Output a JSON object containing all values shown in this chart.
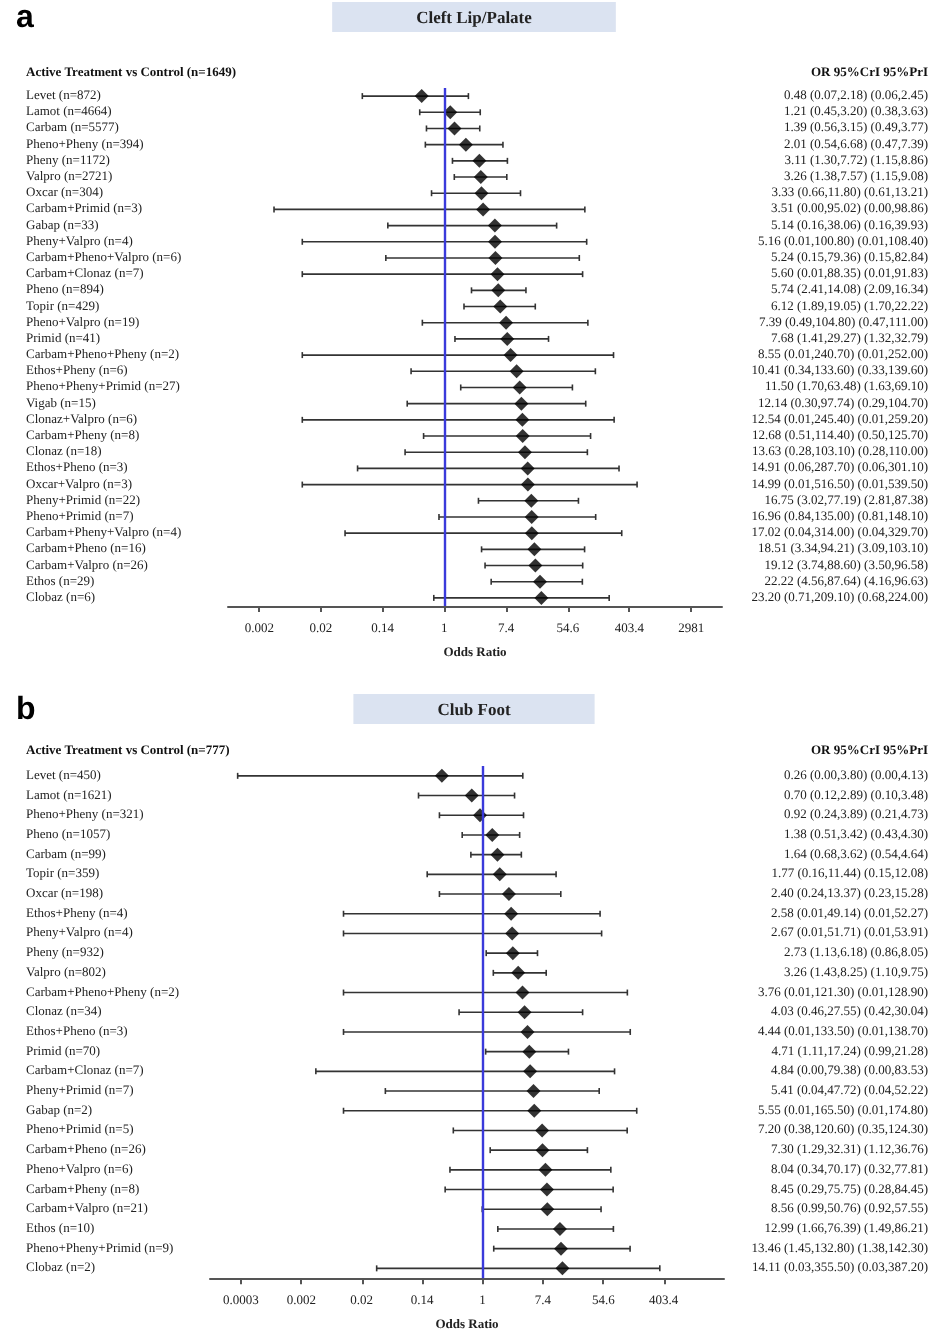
{
  "chart_data": [
    {
      "type": "scatter",
      "orientation": "horizontal",
      "title": "Cleft Lip/Palate",
      "annotations": [
        "a"
      ],
      "ylabel": "Active Treatment vs Control (n=1649)",
      "y2label": "OR 95%CrI 95%PrI",
      "xlabel": "Odds Ratio",
      "log": "x",
      "marker": "diamond",
      "grid": false,
      "color": "#000000",
      "categories": [
        "Levet (n=872)",
        "Lamot (n=4664)",
        "Carbam (n=5577)",
        "Pheno+Pheny (n=394)",
        "Pheny (n=1172)",
        "Valpro (n=2721)",
        "Oxcar (n=304)",
        "Carbam+Primid (n=3)",
        "Gabap (n=33)",
        "Pheny+Valpro (n=4)",
        "Carbam+Pheno+Valpro (n=6)",
        "Carbam+Clonaz (n=7)",
        "Pheno (n=894)",
        "Topir (n=429)",
        "Pheno+Valpro (n=19)",
        "Primid (n=41)",
        "Carbam+Pheno+Pheny (n=2)",
        "Ethos+Pheny (n=6)",
        "Pheno+Pheny+Primid (n=27)",
        "Vigab (n=15)",
        "Clonaz+Valpro (n=6)",
        "Carbam+Pheny (n=8)",
        "Clonaz (n=18)",
        "Ethos+Pheno (n=3)",
        "Oxcar+Valpro (n=3)",
        "Pheny+Primid (n=22)",
        "Pheno+Primid (n=7)",
        "Carbam+Pheny+Valpro (n=4)",
        "Carbam+Pheno (n=16)",
        "Carbam+Valpro (n=26)",
        "Ethos (n=29)",
        "Clobaz (n=6)"
      ],
      "values": [
        0.48,
        1.21,
        1.39,
        2.01,
        3.11,
        3.26,
        3.33,
        3.51,
        5.14,
        5.16,
        5.24,
        5.6,
        5.74,
        6.12,
        7.39,
        7.68,
        8.55,
        10.41,
        11.5,
        12.14,
        12.54,
        12.68,
        13.63,
        14.91,
        14.99,
        16.75,
        16.96,
        17.02,
        18.51,
        19.12,
        22.22,
        23.2
      ],
      "errors": [
        [
          0.07,
          2.18
        ],
        [
          0.45,
          3.2
        ],
        [
          0.56,
          3.15
        ],
        [
          0.54,
          6.68
        ],
        [
          1.3,
          7.72
        ],
        [
          1.38,
          7.57
        ],
        [
          0.66,
          11.8
        ],
        [
          0.004,
          95.02
        ],
        [
          0.16,
          38.06
        ],
        [
          0.01,
          100.8
        ],
        [
          0.15,
          79.36
        ],
        [
          0.01,
          88.35
        ],
        [
          2.41,
          14.08
        ],
        [
          1.89,
          19.05
        ],
        [
          0.49,
          104.8
        ],
        [
          1.41,
          29.27
        ],
        [
          0.01,
          240.7
        ],
        [
          0.34,
          133.6
        ],
        [
          1.7,
          63.48
        ],
        [
          0.3,
          97.74
        ],
        [
          0.01,
          245.4
        ],
        [
          0.51,
          114.4
        ],
        [
          0.28,
          103.1
        ],
        [
          0.06,
          287.7
        ],
        [
          0.01,
          516.5
        ],
        [
          3.02,
          77.19
        ],
        [
          0.84,
          135.0
        ],
        [
          0.04,
          314.0
        ],
        [
          3.34,
          94.21
        ],
        [
          3.74,
          88.6
        ],
        [
          4.56,
          87.64
        ],
        [
          0.71,
          209.1
        ]
      ],
      "value_labels": [
        "0.48 (0.07,2.18) (0.06,2.45)",
        "1.21 (0.45,3.20) (0.38,3.63)",
        "1.39 (0.56,3.15) (0.49,3.77)",
        "2.01 (0.54,6.68) (0.47,7.39)",
        "3.11 (1.30,7.72) (1.15,8.86)",
        "3.26 (1.38,7.57) (1.15,9.08)",
        "3.33 (0.66,11.80) (0.61,13.21)",
        "3.51 (0.00,95.02) (0.00,98.86)",
        "5.14 (0.16,38.06) (0.16,39.93)",
        "5.16 (0.01,100.80) (0.01,108.40)",
        "5.24 (0.15,79.36) (0.15,82.84)",
        "5.60 (0.01,88.35) (0.01,91.83)",
        "5.74 (2.41,14.08) (2.09,16.34)",
        "6.12 (1.89,19.05) (1.70,22.22)",
        "7.39 (0.49,104.80) (0.47,111.00)",
        "7.68 (1.41,29.27) (1.32,32.79)",
        "8.55 (0.01,240.70) (0.01,252.00)",
        "10.41 (0.34,133.60) (0.33,139.60)",
        "11.50 (1.70,63.48) (1.63,69.10)",
        "12.14 (0.30,97.74) (0.29,104.70)",
        "12.54 (0.01,245.40) (0.01,259.20)",
        "12.68 (0.51,114.40) (0.50,125.70)",
        "13.63 (0.28,103.10) (0.28,110.00)",
        "14.91 (0.06,287.70) (0.06,301.10)",
        "14.99 (0.01,516.50) (0.01,539.50)",
        "16.75 (3.02,77.19) (2.81,87.38)",
        "16.96 (0.84,135.00) (0.81,148.10)",
        "17.02 (0.04,314.00) (0.04,329.70)",
        "18.51 (3.34,94.21) (3.09,103.10)",
        "19.12 (3.74,88.60) (3.50,96.58)",
        "22.22 (4.56,87.64) (4.16,96.63)",
        "23.20 (0.71,209.10) (0.68,224.00)"
      ],
      "xlim": [
        0.0009,
        8100
      ],
      "xticks": [
        {
          "value": 0.00248,
          "label": "0.002"
        },
        {
          "value": 0.0183,
          "label": "0.02"
        },
        {
          "value": 0.1353,
          "label": "0.14"
        },
        1,
        {
          "value": 7.389,
          "label": "7.4"
        },
        54.6,
        403.4,
        2981
      ],
      "ref_lines": [
        {
          "axis": "x",
          "value": 1,
          "color": "#3a3adb"
        }
      ]
    },
    {
      "type": "scatter",
      "orientation": "horizontal",
      "title": "Club Foot",
      "annotations": [
        "b"
      ],
      "ylabel": "Active Treatment vs Control (n=777)",
      "y2label": "OR 95%CrI 95%PrI",
      "xlabel": "Odds Ratio",
      "log": "x",
      "marker": "diamond",
      "grid": false,
      "color": "#000000",
      "categories": [
        "Levet (n=450)",
        "Lamot (n=1621)",
        "Pheno+Pheny (n=321)",
        "Pheno (n=1057)",
        "Carbam (n=99)",
        "Topir (n=359)",
        "Oxcar (n=198)",
        "Ethos+Pheny (n=4)",
        "Pheny+Valpro (n=4)",
        "Pheny (n=932)",
        "Valpro (n=802)",
        "Carbam+Pheno+Pheny (n=2)",
        "Clonaz (n=34)",
        "Ethos+Pheno (n=3)",
        "Primid (n=70)",
        "Carbam+Clonaz (n=7)",
        "Pheny+Primid (n=7)",
        "Gabap (n=2)",
        "Pheno+Primid (n=5)",
        "Carbam+Pheno (n=26)",
        "Pheno+Valpro (n=6)",
        "Carbam+Pheny (n=8)",
        "Carbam+Valpro (n=21)",
        "Ethos (n=10)",
        "Pheno+Pheny+Primid (n=9)",
        "Clobaz (n=2)"
      ],
      "values": [
        0.26,
        0.7,
        0.92,
        1.38,
        1.64,
        1.77,
        2.4,
        2.58,
        2.67,
        2.73,
        3.26,
        3.76,
        4.03,
        4.44,
        4.71,
        4.84,
        5.41,
        5.55,
        7.2,
        7.3,
        8.04,
        8.45,
        8.56,
        12.99,
        13.46,
        14.11
      ],
      "errors": [
        [
          0.0003,
          3.8
        ],
        [
          0.12,
          2.89
        ],
        [
          0.24,
          3.89
        ],
        [
          0.51,
          3.42
        ],
        [
          0.68,
          3.62
        ],
        [
          0.16,
          11.44
        ],
        [
          0.24,
          13.37
        ],
        [
          0.01,
          49.14
        ],
        [
          0.01,
          51.71
        ],
        [
          1.13,
          6.18
        ],
        [
          1.43,
          8.25
        ],
        [
          0.01,
          121.3
        ],
        [
          0.46,
          27.55
        ],
        [
          0.01,
          133.5
        ],
        [
          1.11,
          17.24
        ],
        [
          0.004,
          79.38
        ],
        [
          0.04,
          47.72
        ],
        [
          0.01,
          165.5
        ],
        [
          0.38,
          120.6
        ],
        [
          1.29,
          32.31
        ],
        [
          0.34,
          70.17
        ],
        [
          0.29,
          75.75
        ],
        [
          0.99,
          50.76
        ],
        [
          1.66,
          76.39
        ],
        [
          1.45,
          132.8
        ],
        [
          0.03,
          355.5
        ]
      ],
      "value_labels": [
        "0.26 (0.00,3.80) (0.00,4.13)",
        "0.70 (0.12,2.89) (0.10,3.48)",
        "0.92 (0.24,3.89) (0.21,4.73)",
        "1.38 (0.51,3.42) (0.43,4.30)",
        "1.64 (0.68,3.62) (0.54,4.64)",
        "1.77 (0.16,11.44) (0.15,12.08)",
        "2.40 (0.24,13.37) (0.23,15.28)",
        "2.58 (0.01,49.14) (0.01,52.27)",
        "2.67 (0.01,51.71) (0.01,53.91)",
        "2.73 (1.13,6.18) (0.86,8.05)",
        "3.26 (1.43,8.25) (1.10,9.75)",
        "3.76 (0.01,121.30) (0.01,128.90)",
        "4.03 (0.46,27.55) (0.42,30.04)",
        "4.44 (0.01,133.50) (0.01,138.70)",
        "4.71 (1.11,17.24) (0.99,21.28)",
        "4.84 (0.00,79.38) (0.00,83.53)",
        "5.41 (0.04,47.72) (0.04,52.22)",
        "5.55 (0.01,165.50) (0.01,174.80)",
        "7.20 (0.38,120.60) (0.35,124.30)",
        "7.30 (1.29,32.31) (1.12,36.76)",
        "8.04 (0.34,70.17) (0.32,77.81)",
        "8.45 (0.29,75.75) (0.28,84.45)",
        "8.56 (0.99,50.76) (0.92,57.55)",
        "12.99 (1.66,76.39) (1.49,86.21)",
        "13.46 (1.45,132.80) (1.38,142.30)",
        "14.11 (0.03,355.50) (0.03,387.20)"
      ],
      "xlim": [
        0.00012,
        2981
      ],
      "xticks": [
        {
          "value": 0.000335,
          "label": "0.0003"
        },
        {
          "value": 0.00248,
          "label": "0.002"
        },
        {
          "value": 0.0183,
          "label": "0.02"
        },
        {
          "value": 0.1353,
          "label": "0.14"
        },
        1,
        {
          "value": 7.389,
          "label": "7.4"
        },
        54.6,
        403.4
      ],
      "ref_lines": [
        {
          "axis": "x",
          "value": 1,
          "color": "#3a3adb"
        }
      ]
    }
  ]
}
